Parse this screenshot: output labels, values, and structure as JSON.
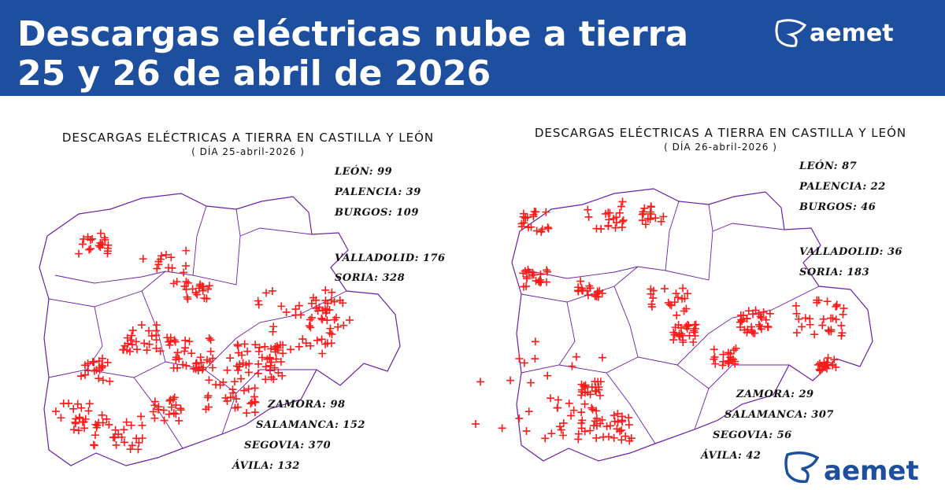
{
  "header": {
    "title_line1": "Descargas eléctricas nube a tierra",
    "title_line2": "25 y 26 de abril de 2026",
    "logo": "aemet"
  },
  "maps": [
    {
      "title": "DESCARGAS ELÉCTRICAS A TIERRA EN CASTILLA Y LEÓN",
      "subtitle": "( DÍA 25-abril-2026 )",
      "provinces": [
        {
          "name": "LEÓN:",
          "count": 99
        },
        {
          "name": "PALENCIA:",
          "count": 39
        },
        {
          "name": "BURGOS:",
          "count": 109
        },
        {
          "name": "VALLADOLID:",
          "count": 176
        },
        {
          "name": "SORIA:",
          "count": 328
        },
        {
          "name": "ZAMORA:",
          "count": 98
        },
        {
          "name": "SALAMANCA:",
          "count": 152
        },
        {
          "name": "SEGOVIA:",
          "count": 370
        },
        {
          "name": "ÁVILA:",
          "count": 132
        }
      ]
    },
    {
      "title": "DESCARGAS ELÉCTRICAS A TIERRA EN CASTILLA Y LEÓN",
      "subtitle": "( DÍA 26-abril-2026 )",
      "provinces": [
        {
          "name": "LEÓN:",
          "count": 87
        },
        {
          "name": "PALENCIA:",
          "count": 22
        },
        {
          "name": "BURGOS:",
          "count": 46
        },
        {
          "name": "VALLADOLID:",
          "count": 36
        },
        {
          "name": "SORIA:",
          "count": 183
        },
        {
          "name": "ZAMORA:",
          "count": 29
        },
        {
          "name": "SALAMANCA:",
          "count": 307
        },
        {
          "name": "SEGOVIA:",
          "count": 56
        },
        {
          "name": "ÁVILA:",
          "count": 42
        }
      ]
    }
  ],
  "footer_logo": "aemet"
}
